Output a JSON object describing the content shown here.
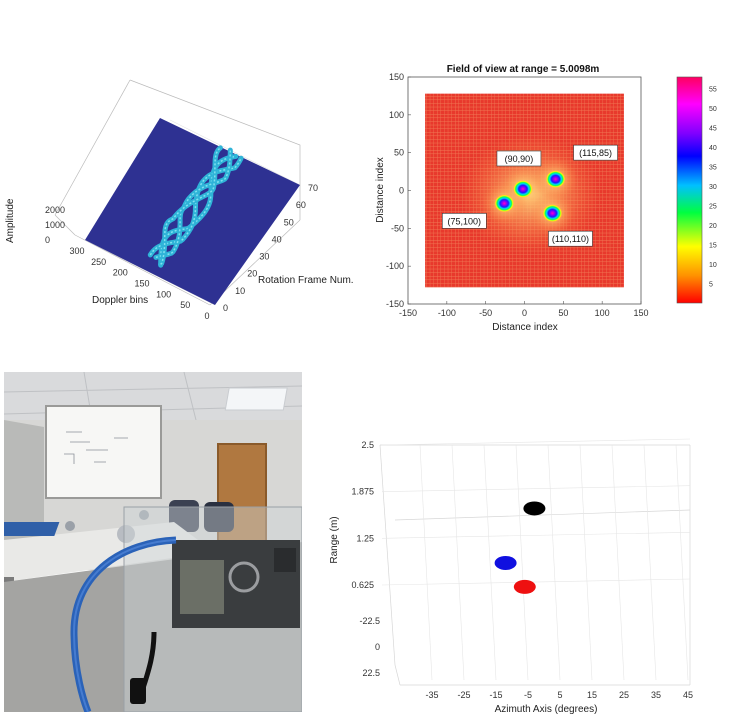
{
  "chart_data": [
    {
      "type": "surface3d",
      "xlabel": "Doppler bins",
      "ylabel": "Rotation Frame Num.",
      "zlabel": "Amplitude",
      "x_ticks": [
        "0",
        "50",
        "100",
        "150",
        "200",
        "250",
        "300"
      ],
      "y_ticks": [
        "0",
        "10",
        "20",
        "30",
        "40",
        "50",
        "60",
        "70"
      ],
      "z_ticks": [
        "0",
        "1000",
        "2000"
      ],
      "xlim": [
        0,
        300
      ],
      "ylim": [
        0,
        70
      ],
      "zlim": [
        0,
        2000
      ],
      "colors": {
        "floor": "#2e3192",
        "ridge": "#2fb4d8",
        "ridge_light": "#7fe0f0"
      }
    },
    {
      "type": "heatmap",
      "title": "Field of view at range = 5.0098m",
      "xlabel": "Distance index",
      "ylabel": "Distance index",
      "x_ticks": [
        "-150",
        "-100",
        "-50",
        "0",
        "50",
        "100",
        "150"
      ],
      "y_ticks": [
        "150",
        "100",
        "50",
        "0",
        "-50",
        "-100",
        "-150"
      ],
      "xlim": [
        -150,
        150
      ],
      "ylim": [
        -150,
        150
      ],
      "extent": [
        -128,
        128
      ],
      "colorbar_ticks": [
        "55",
        "50",
        "45",
        "40",
        "35",
        "30",
        "25",
        "20",
        "15",
        "10",
        "5"
      ],
      "colorbar_range": [
        0,
        58
      ],
      "targets": [
        {
          "label": "(90,90)",
          "x": -2,
          "y": 2
        },
        {
          "label": "(115,85)",
          "x": 40,
          "y": 15
        },
        {
          "label": "(75,100)",
          "x": -26,
          "y": -17
        },
        {
          "label": "(110,110)",
          "x": 36,
          "y": -30
        }
      ]
    },
    {
      "type": "scatter3d",
      "xlabel": "Azimuth Axis (degrees)",
      "ylabel": "Range (m)",
      "x_ticks": [
        "-35",
        "-25",
        "-15",
        "-5",
        "5",
        "15",
        "25",
        "35",
        "45"
      ],
      "y_ticks": [
        "2.5",
        "1.875",
        "1.25",
        "0.625"
      ],
      "depth_ticks": [
        "-22.5",
        "0",
        "22.5"
      ],
      "points": [
        {
          "x": -3,
          "y": 1.65,
          "color": "#000000"
        },
        {
          "x": -12,
          "y": 0.92,
          "color": "#1010e0"
        },
        {
          "x": -6,
          "y": 0.6,
          "color": "#ee1010"
        }
      ]
    }
  ]
}
